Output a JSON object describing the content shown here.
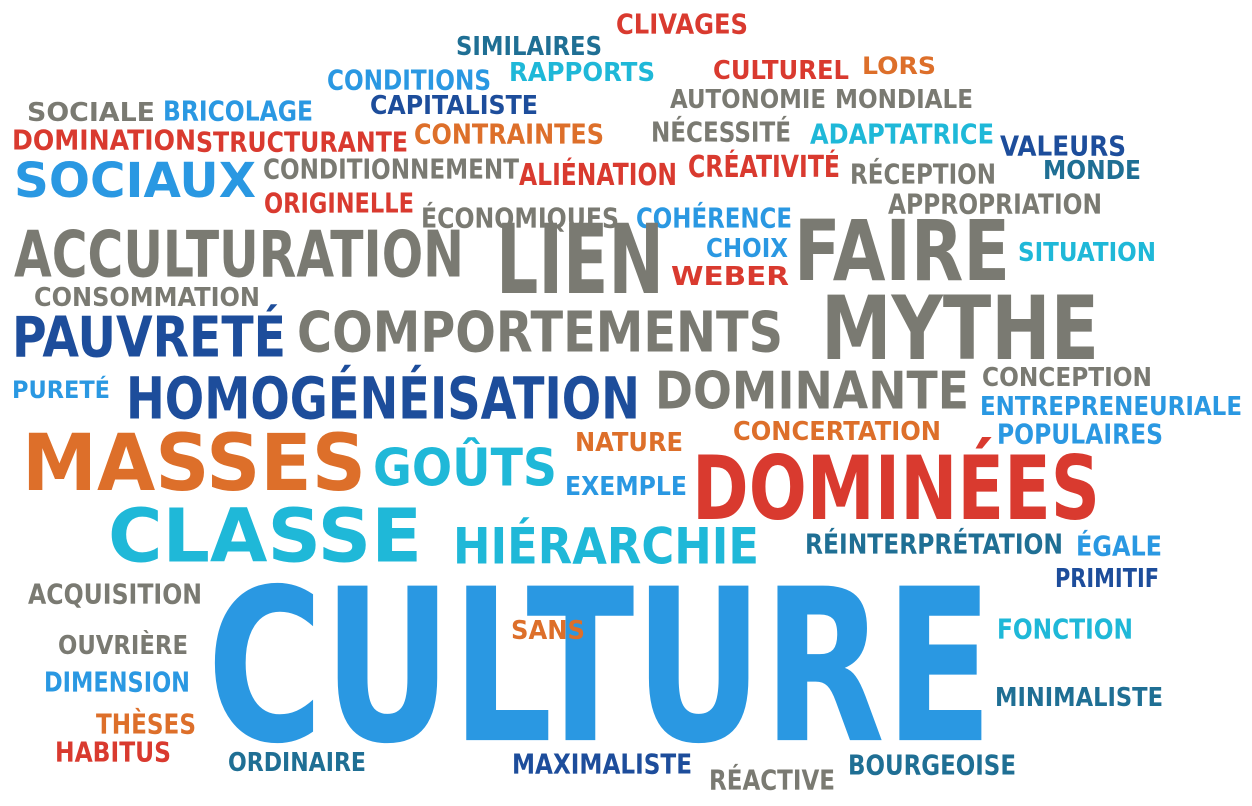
{
  "colors": {
    "red": "#d93a2f",
    "orange": "#dd6f2a",
    "gray": "#7a7a72",
    "navy": "#1d4d9b",
    "blue": "#2a98e2",
    "cyan": "#1fb8d8",
    "teal": "#1f6f94"
  },
  "words": [
    {
      "id": "clivages",
      "text": "CLIVAGES",
      "color": "red"
    },
    {
      "id": "similaires",
      "text": "SIMILAIRES",
      "color": "teal"
    },
    {
      "id": "rapports",
      "text": "RAPPORTS",
      "color": "cyan"
    },
    {
      "id": "culturel",
      "text": "CULTUREL",
      "color": "red"
    },
    {
      "id": "lors",
      "text": "LORS",
      "color": "orange"
    },
    {
      "id": "conditions",
      "text": "CONDITIONS",
      "color": "blue"
    },
    {
      "id": "autonomie",
      "text": "AUTONOMIE",
      "color": "gray"
    },
    {
      "id": "mondiale",
      "text": "MONDIALE",
      "color": "gray"
    },
    {
      "id": "sociale",
      "text": "SOCIALE",
      "color": "gray"
    },
    {
      "id": "bricolage",
      "text": "BRICOLAGE",
      "color": "blue"
    },
    {
      "id": "capitaliste",
      "text": "CAPITALISTE",
      "color": "navy"
    },
    {
      "id": "domination",
      "text": "DOMINATION",
      "color": "red"
    },
    {
      "id": "structurante",
      "text": "STRUCTURANTE",
      "color": "red"
    },
    {
      "id": "contraintes",
      "text": "CONTRAINTES",
      "color": "orange"
    },
    {
      "id": "necessite",
      "text": "NÉCESSITÉ",
      "color": "gray"
    },
    {
      "id": "adaptatrice",
      "text": "ADAPTATRICE",
      "color": "cyan"
    },
    {
      "id": "valeurs",
      "text": "VALEURS",
      "color": "navy"
    },
    {
      "id": "sociaux",
      "text": "SOCIAUX",
      "color": "blue"
    },
    {
      "id": "conditionnement",
      "text": "CONDITIONNEMENT",
      "color": "gray"
    },
    {
      "id": "alienation",
      "text": "ALIÉNATION",
      "color": "red"
    },
    {
      "id": "creativite",
      "text": "CRÉATIVITÉ",
      "color": "red"
    },
    {
      "id": "reception",
      "text": "RÉCEPTION",
      "color": "gray"
    },
    {
      "id": "monde",
      "text": "MONDE",
      "color": "teal"
    },
    {
      "id": "originelle",
      "text": "ORIGINELLE",
      "color": "red"
    },
    {
      "id": "economiques",
      "text": "ÉCONOMIQUES",
      "color": "gray"
    },
    {
      "id": "coherence",
      "text": "COHÉRENCE",
      "color": "blue"
    },
    {
      "id": "appropriation",
      "text": "APPROPRIATION",
      "color": "gray"
    },
    {
      "id": "acculturation",
      "text": "ACCULTURATION",
      "color": "gray"
    },
    {
      "id": "lien",
      "text": "LIEN",
      "color": "gray"
    },
    {
      "id": "choix",
      "text": "CHOIX",
      "color": "blue"
    },
    {
      "id": "faire",
      "text": "FAIRE",
      "color": "gray"
    },
    {
      "id": "situation",
      "text": "SITUATION",
      "color": "cyan"
    },
    {
      "id": "weber",
      "text": "WEBER",
      "color": "red"
    },
    {
      "id": "consommation",
      "text": "CONSOMMATION",
      "color": "gray"
    },
    {
      "id": "pauvrete",
      "text": "PAUVRETÉ",
      "color": "navy"
    },
    {
      "id": "comportements",
      "text": "COMPORTEMENTS",
      "color": "gray"
    },
    {
      "id": "mythe",
      "text": "MYTHE",
      "color": "gray"
    },
    {
      "id": "purete",
      "text": "PURETÉ",
      "color": "blue"
    },
    {
      "id": "homogeneisation",
      "text": "HOMOGÉNÉISATION",
      "color": "navy"
    },
    {
      "id": "dominante",
      "text": "DOMINANTE",
      "color": "gray"
    },
    {
      "id": "conception",
      "text": "CONCEPTION",
      "color": "gray"
    },
    {
      "id": "entrepreneuriale",
      "text": "ENTREPRENEURIALE",
      "color": "blue"
    },
    {
      "id": "masses",
      "text": "MASSES",
      "color": "orange"
    },
    {
      "id": "nature",
      "text": "NATURE",
      "color": "orange"
    },
    {
      "id": "concertation",
      "text": "CONCERTATION",
      "color": "orange"
    },
    {
      "id": "populaires",
      "text": "POPULAIRES",
      "color": "blue"
    },
    {
      "id": "gouts",
      "text": "GOÛTS",
      "color": "cyan"
    },
    {
      "id": "exemple",
      "text": "EXEMPLE",
      "color": "blue"
    },
    {
      "id": "dominees",
      "text": "DOMINÉES",
      "color": "red"
    },
    {
      "id": "classe",
      "text": "CLASSE",
      "color": "cyan"
    },
    {
      "id": "hierarchie",
      "text": "HIÉRARCHIE",
      "color": "cyan"
    },
    {
      "id": "reinterpretation",
      "text": "RÉINTERPRÉTATION",
      "color": "teal"
    },
    {
      "id": "egale",
      "text": "ÉGALE",
      "color": "blue"
    },
    {
      "id": "primitif",
      "text": "PRIMITIF",
      "color": "navy"
    },
    {
      "id": "acquisition",
      "text": "ACQUISITION",
      "color": "gray"
    },
    {
      "id": "culture",
      "text": "CULTURE",
      "color": "blue"
    },
    {
      "id": "sans",
      "text": "SANS",
      "color": "orange"
    },
    {
      "id": "fonction",
      "text": "FONCTION",
      "color": "cyan"
    },
    {
      "id": "ouvriere",
      "text": "OUVRIÈRE",
      "color": "gray"
    },
    {
      "id": "dimension",
      "text": "DIMENSION",
      "color": "blue"
    },
    {
      "id": "minimaliste",
      "text": "MINIMALISTE",
      "color": "teal"
    },
    {
      "id": "theses",
      "text": "THÈSES",
      "color": "orange"
    },
    {
      "id": "habitus",
      "text": "HABITUS",
      "color": "red"
    },
    {
      "id": "ordinaire",
      "text": "ORDINAIRE",
      "color": "teal"
    },
    {
      "id": "maximaliste",
      "text": "MAXIMALISTE",
      "color": "navy"
    },
    {
      "id": "bourgeoise",
      "text": "BOURGEOISE",
      "color": "teal"
    },
    {
      "id": "reactive",
      "text": "RÉACTIVE",
      "color": "gray"
    }
  ]
}
